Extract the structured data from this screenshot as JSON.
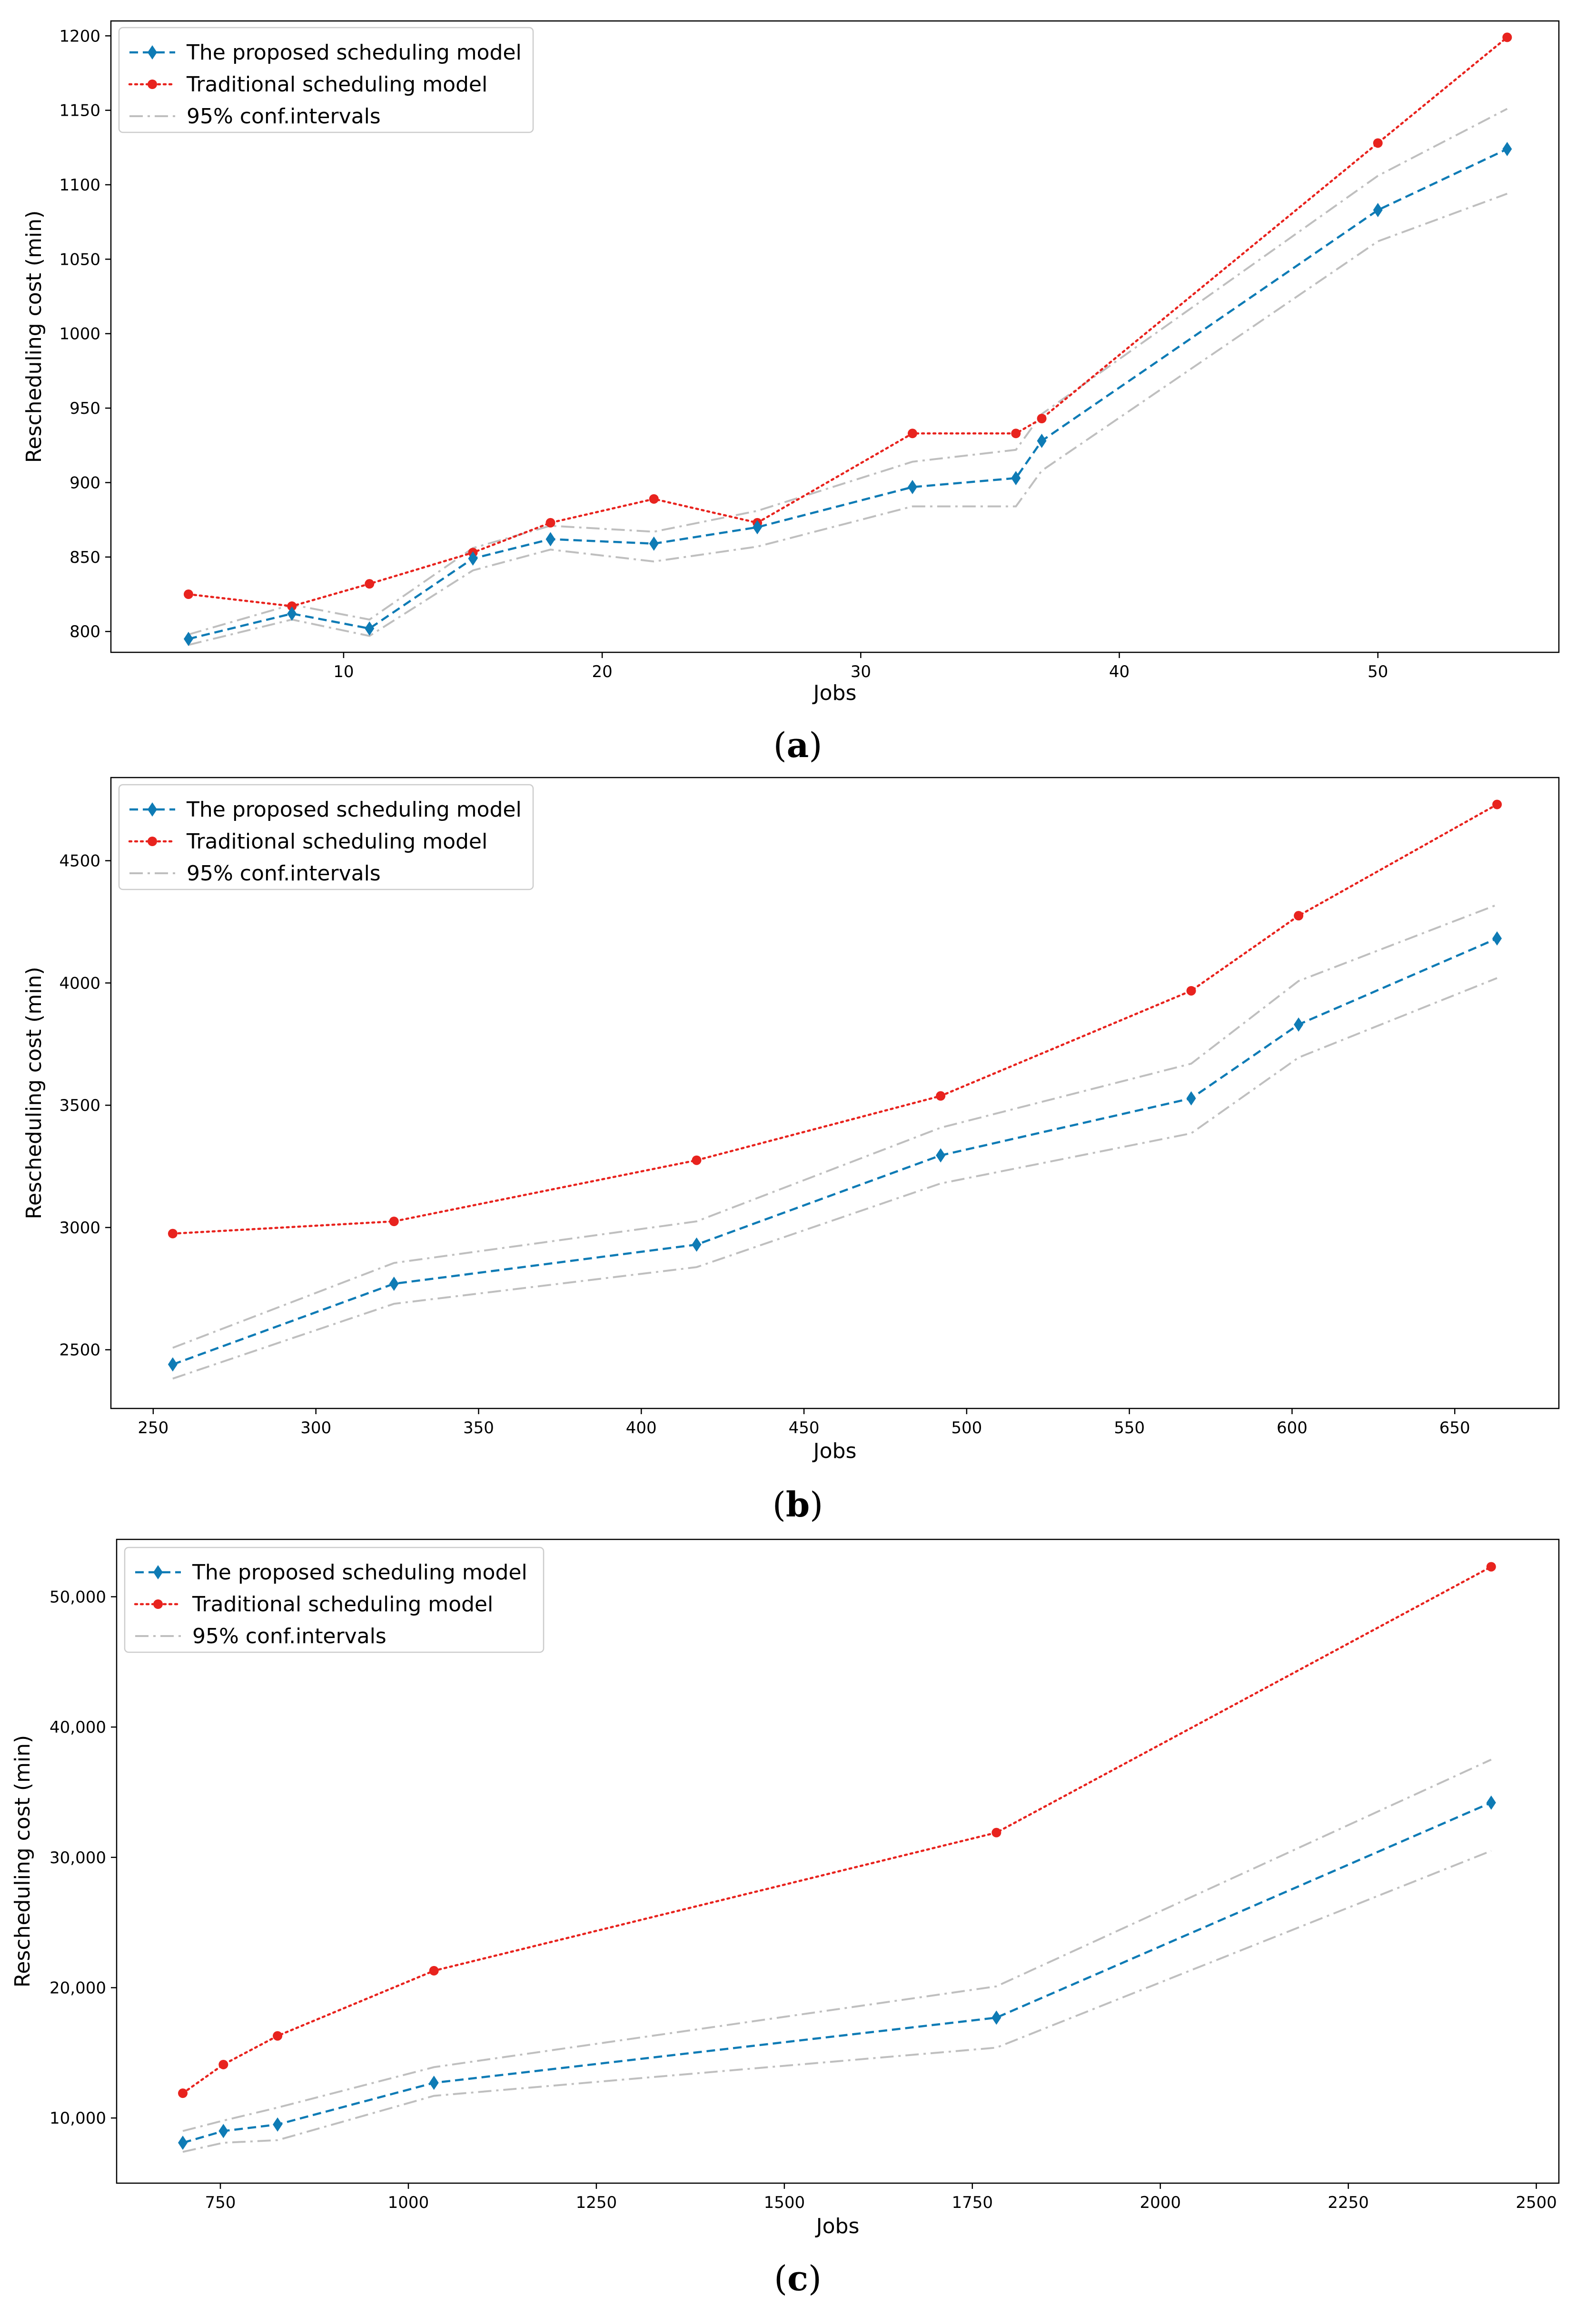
{
  "colors": {
    "proposed": "#0e7bb5",
    "traditional": "#e8231e",
    "ci": "#bfbfbf",
    "legend_border": "#cccccc"
  },
  "legend": {
    "proposed": "The proposed scheduling model",
    "traditional": "Traditional scheduling model",
    "ci": "95% conf.intervals"
  },
  "chart_data": [
    {
      "type": "line",
      "panel_label": "a",
      "title": "",
      "xlabel": "Jobs",
      "ylabel": "Rescheduling cost (min)",
      "xlim": [
        1,
        57
      ],
      "ylim": [
        786,
        1210
      ],
      "xticks": [
        10,
        20,
        30,
        40,
        50
      ],
      "xtick_labels": [
        "10",
        "20",
        "30",
        "40",
        "50"
      ],
      "yticks": [
        800,
        850,
        900,
        950,
        1000,
        1050,
        1100,
        1150,
        1200
      ],
      "ytick_labels": [
        "800",
        "850",
        "900",
        "950",
        "1000",
        "1050",
        "1100",
        "1150",
        "1200"
      ],
      "series": [
        {
          "name": "The proposed scheduling model",
          "key": "proposed",
          "x": [
            4,
            8,
            11,
            15,
            18,
            22,
            26,
            32,
            36,
            37,
            50,
            55
          ],
          "y": [
            795,
            812,
            802,
            849,
            862,
            859,
            870,
            897,
            903,
            928,
            1083,
            1124
          ]
        },
        {
          "name": "Traditional scheduling model",
          "key": "traditional",
          "x": [
            4,
            8,
            11,
            15,
            18,
            22,
            26,
            32,
            36,
            37,
            50,
            55
          ],
          "y": [
            825,
            817,
            832,
            853,
            873,
            889,
            873,
            933,
            933,
            943,
            1128,
            1199
          ]
        },
        {
          "name": "95% conf.intervals",
          "key": "ci_upper",
          "x": [
            4,
            8,
            11,
            15,
            18,
            22,
            26,
            32,
            36,
            37,
            50,
            55
          ],
          "y": [
            798,
            818,
            808,
            856,
            871,
            867,
            881,
            914,
            922,
            946,
            1106,
            1151
          ]
        },
        {
          "name": "95% conf.intervals",
          "key": "ci_lower",
          "x": [
            4,
            8,
            11,
            15,
            18,
            22,
            26,
            32,
            36,
            37,
            50,
            55
          ],
          "y": [
            791,
            808,
            797,
            841,
            855,
            847,
            857,
            884,
            884,
            908,
            1062,
            1094
          ]
        }
      ]
    },
    {
      "type": "line",
      "panel_label": "b",
      "title": "",
      "xlabel": "Jobs",
      "ylabel": "Rescheduling cost (min)",
      "xlim": [
        237,
        682
      ],
      "ylim": [
        2260,
        4840
      ],
      "xticks": [
        250,
        300,
        350,
        400,
        450,
        500,
        550,
        600,
        650
      ],
      "xtick_labels": [
        "250",
        "300",
        "350",
        "400",
        "450",
        "500",
        "550",
        "600",
        "650"
      ],
      "yticks": [
        2500,
        3000,
        3500,
        4000,
        4500
      ],
      "ytick_labels": [
        "2500",
        "3000",
        "3500",
        "4000",
        "4500"
      ],
      "series": [
        {
          "name": "The proposed scheduling model",
          "key": "proposed",
          "x": [
            256,
            324,
            417,
            492,
            569,
            602,
            663
          ],
          "y": [
            2440,
            2770,
            2930,
            3295,
            3528,
            3830,
            4182
          ]
        },
        {
          "name": "Traditional scheduling model",
          "key": "traditional",
          "x": [
            256,
            324,
            417,
            492,
            569,
            602,
            663
          ],
          "y": [
            2975,
            3025,
            3275,
            3538,
            3968,
            4275,
            4730
          ]
        },
        {
          "name": "95% conf.intervals",
          "key": "ci_upper",
          "x": [
            256,
            324,
            417,
            492,
            569,
            602,
            663
          ],
          "y": [
            2508,
            2855,
            3025,
            3408,
            3670,
            4008,
            4320
          ]
        },
        {
          "name": "95% conf.intervals",
          "key": "ci_lower",
          "x": [
            256,
            324,
            417,
            492,
            569,
            602,
            663
          ],
          "y": [
            2382,
            2688,
            2838,
            3180,
            3385,
            3695,
            4020
          ]
        }
      ]
    },
    {
      "type": "line",
      "panel_label": "c",
      "title": "",
      "xlabel": "Jobs",
      "ylabel": "Rescheduling cost (min)",
      "xlim": [
        612,
        2530
      ],
      "ylim": [
        5000,
        54400
      ],
      "xticks": [
        750,
        1000,
        1250,
        1500,
        1750,
        2000,
        2250,
        2500
      ],
      "xtick_labels": [
        "750",
        "1000",
        "1250",
        "1500",
        "1750",
        "2000",
        "2250",
        "2500"
      ],
      "yticks": [
        10000,
        20000,
        30000,
        40000,
        50000
      ],
      "ytick_labels": [
        "10,000",
        "20,000",
        "30,000",
        "40,000",
        "50,000"
      ],
      "series": [
        {
          "name": "The proposed scheduling model",
          "key": "proposed",
          "x": [
            700,
            754,
            826,
            1034,
            1782,
            2440
          ],
          "y": [
            8100,
            9000,
            9500,
            12700,
            17700,
            34200
          ]
        },
        {
          "name": "Traditional scheduling model",
          "key": "traditional",
          "x": [
            700,
            754,
            826,
            1034,
            1782,
            2440
          ],
          "y": [
            11900,
            14100,
            16300,
            21300,
            31900,
            52300
          ]
        },
        {
          "name": "95% conf.intervals",
          "key": "ci_upper",
          "x": [
            700,
            754,
            826,
            1034,
            1782,
            2440
          ],
          "y": [
            9000,
            9800,
            10800,
            13900,
            20100,
            37500
          ]
        },
        {
          "name": "95% conf.intervals",
          "key": "ci_lower",
          "x": [
            700,
            754,
            826,
            1034,
            1782,
            2440
          ],
          "y": [
            7400,
            8100,
            8300,
            11700,
            15400,
            30500
          ]
        }
      ]
    }
  ]
}
